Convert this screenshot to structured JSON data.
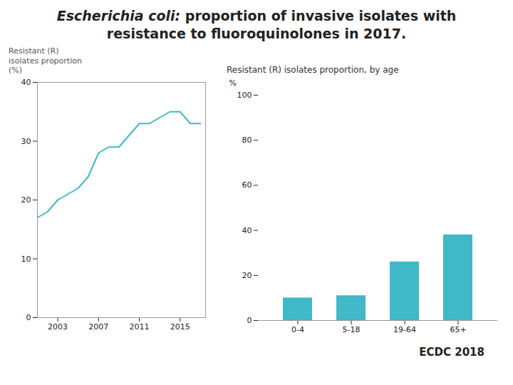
{
  "chart_data": [
    {
      "type": "line",
      "title": "Escherichia coli: proportion of invasive isolates with resistance to fluoroquinolones in 2017.",
      "y_label": "Resistant (R)\nisolates proportion\n(%)",
      "x": [
        2001,
        2002,
        2003,
        2004,
        2005,
        2006,
        2007,
        2008,
        2009,
        2010,
        2011,
        2012,
        2013,
        2014,
        2015,
        2016,
        2017
      ],
      "series": [
        {
          "name": "Resistant (R) isolates proportion (%)",
          "color": "#40b8c8",
          "values": [
            17,
            18,
            20,
            21,
            22,
            24,
            28,
            29,
            29,
            31,
            33,
            33,
            34,
            35,
            35,
            33,
            33
          ]
        }
      ],
      "xlim": [
        2001,
        2017.5
      ],
      "xticks": [
        2003,
        2007,
        2011,
        2015
      ],
      "ylim": [
        0,
        40
      ],
      "yticks": [
        0,
        10,
        20,
        30,
        40
      ],
      "grid": false
    },
    {
      "type": "bar",
      "title": "Resistant (R) isolates proportion, by age",
      "y_label": "%",
      "categories": [
        "0-4",
        "5-18",
        "19-64",
        "65+"
      ],
      "values": [
        10,
        11,
        26,
        38
      ],
      "color": "#40b8c8",
      "ylim": [
        0,
        100
      ],
      "yticks": [
        0,
        20,
        40,
        60,
        80,
        100
      ],
      "grid": false,
      "annotations": [
        "ECDC 2018"
      ]
    }
  ]
}
